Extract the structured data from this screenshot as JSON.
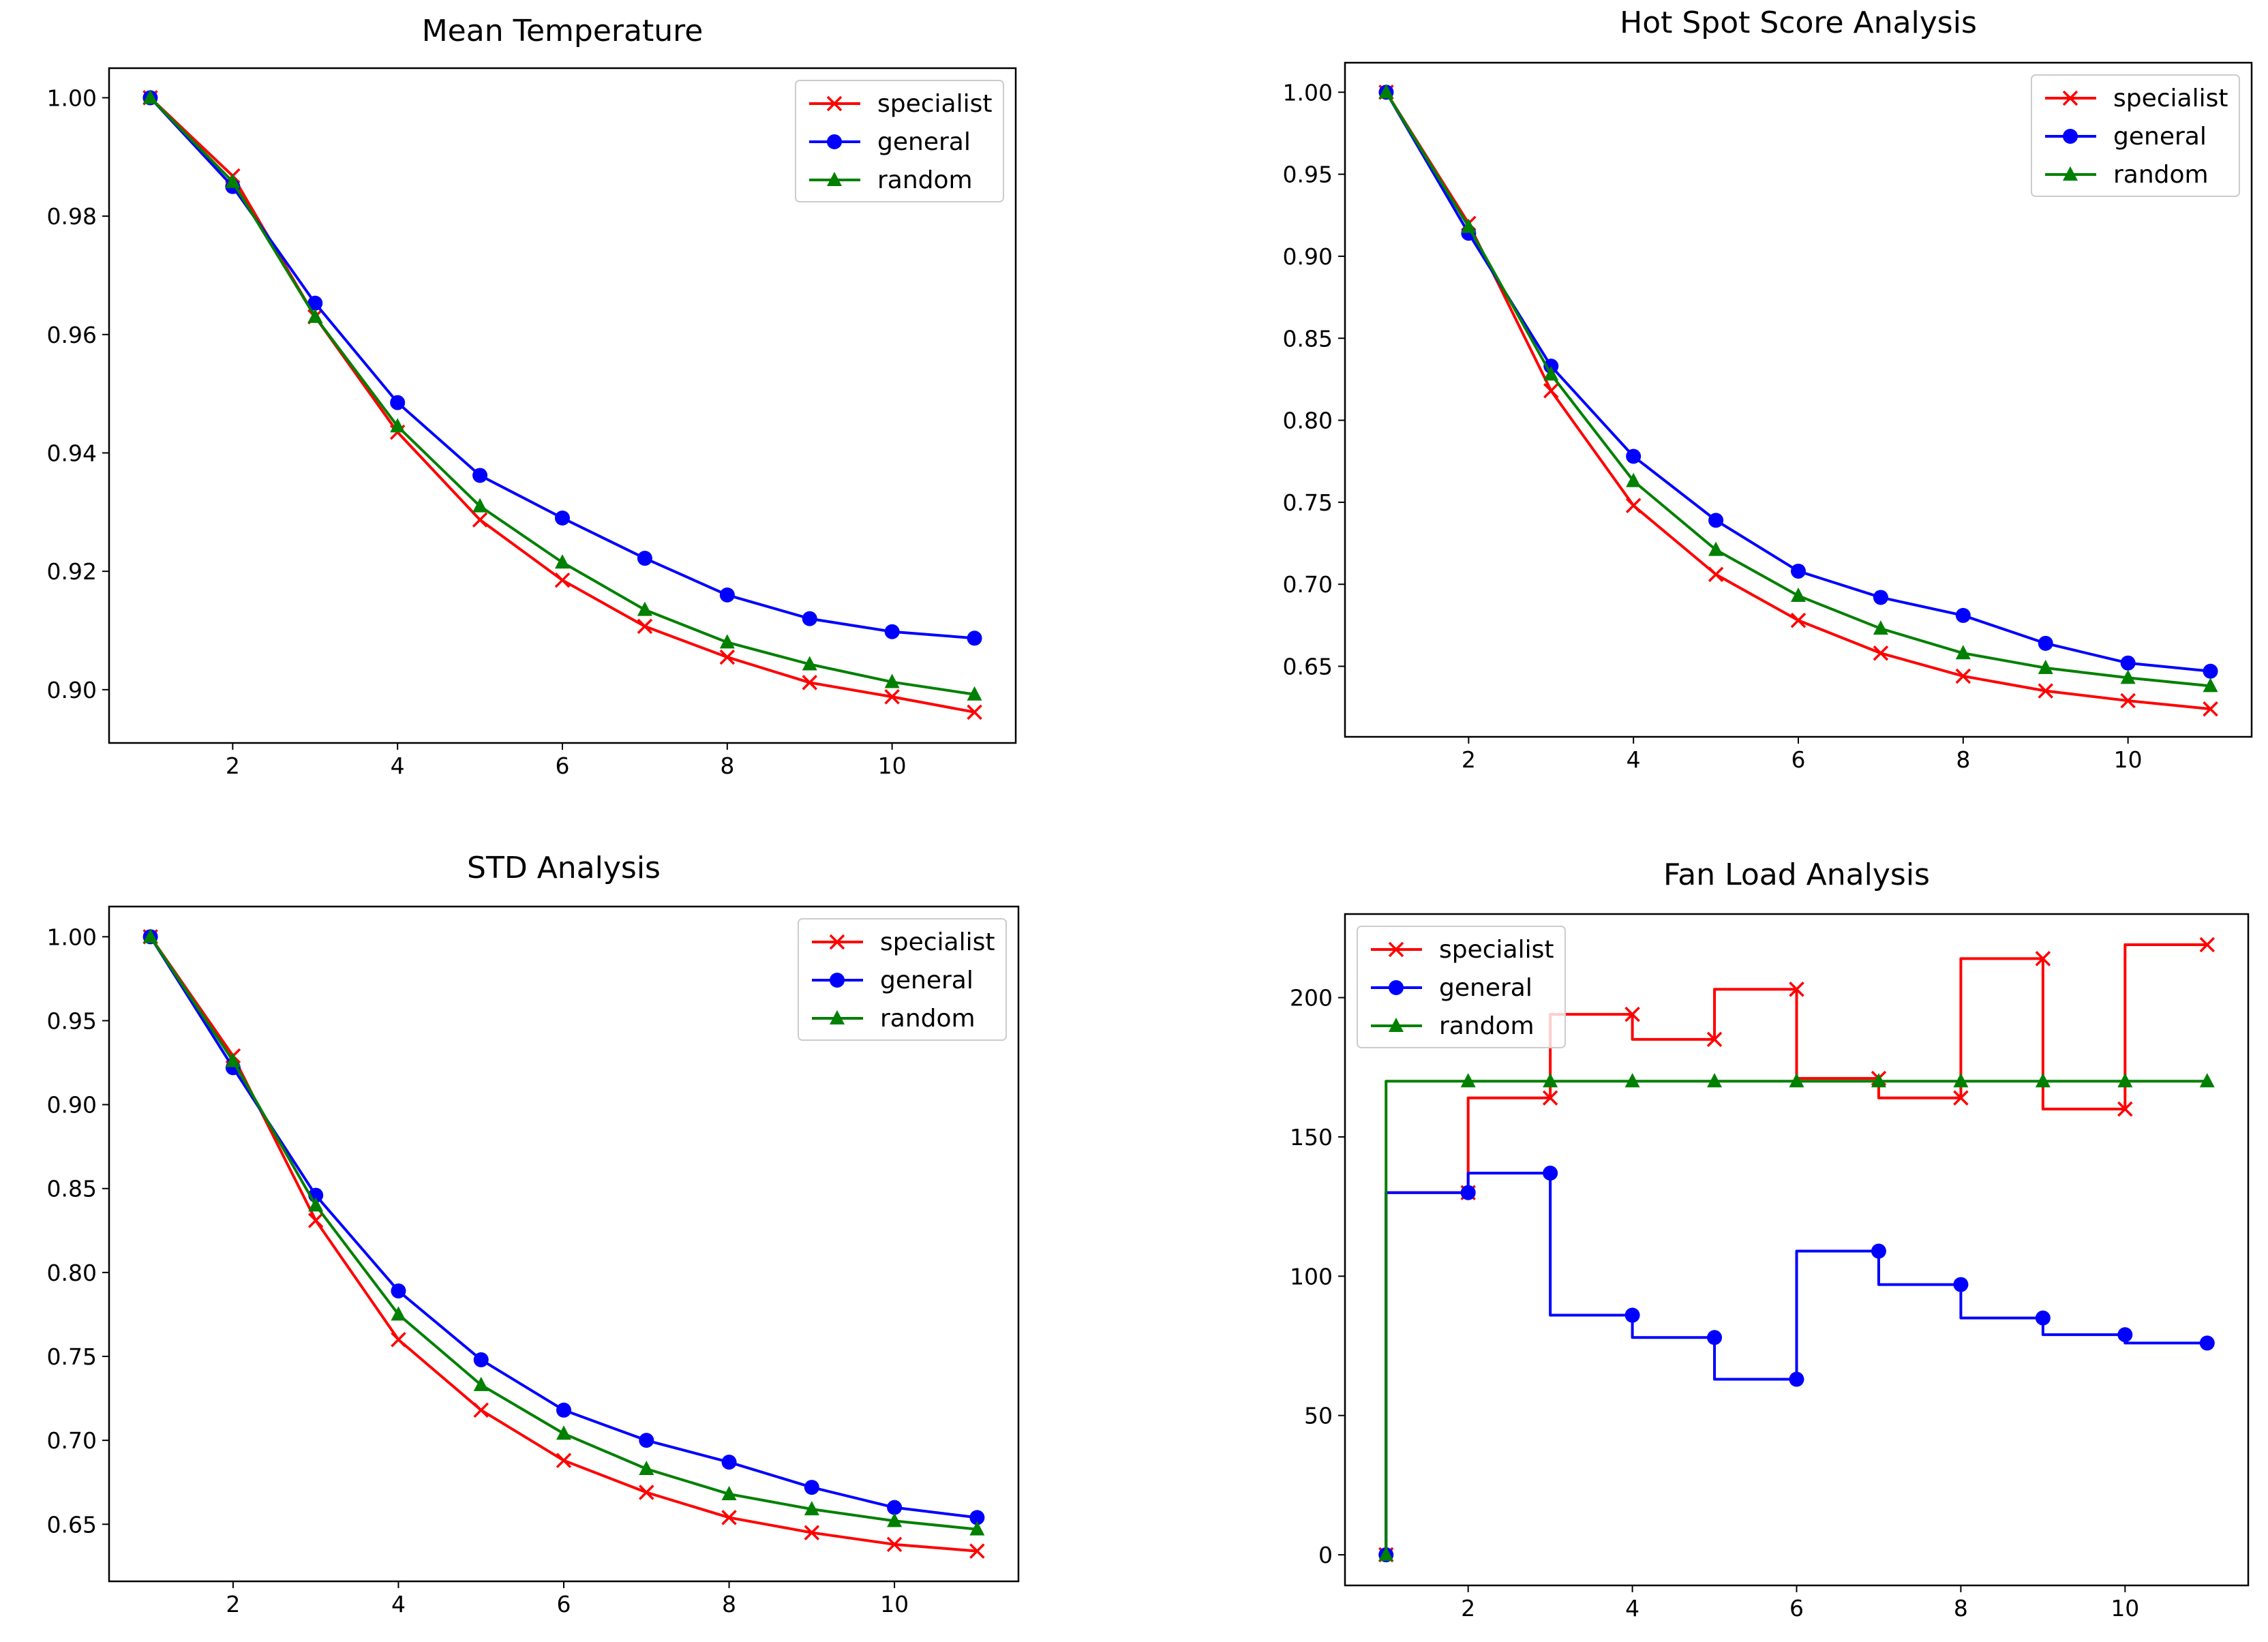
{
  "colors": {
    "specialist": "#ff0000",
    "general": "#0000ff",
    "random": "#008000"
  },
  "chart_data": [
    {
      "type": "line",
      "title": "Mean Temperature",
      "xlabel": "",
      "ylabel": "",
      "x": [
        1,
        2,
        3,
        4,
        5,
        6,
        7,
        8,
        9,
        10,
        11
      ],
      "xlim": [
        0.5,
        11.5
      ],
      "ylim": [
        0.891,
        1.005
      ],
      "xticks": [
        2,
        4,
        6,
        8,
        10
      ],
      "xtick_labels": [
        "2",
        "4",
        "6",
        "8",
        "10"
      ],
      "yticks": [
        0.9,
        0.92,
        0.94,
        0.96,
        0.98,
        1.0
      ],
      "ytick_labels": [
        "0.90",
        "0.92",
        "0.94",
        "0.96",
        "0.98",
        "1.00"
      ],
      "legend": "top-right",
      "grid": false,
      "series": [
        {
          "name": "specialist",
          "marker": "x",
          "values": [
            1.0,
            0.9868,
            0.963,
            0.9435,
            0.9287,
            0.9185,
            0.9107,
            0.9055,
            0.9012,
            0.8988,
            0.8962
          ]
        },
        {
          "name": "general",
          "marker": "circle",
          "values": [
            1.0,
            0.985,
            0.9653,
            0.9485,
            0.9362,
            0.929,
            0.9222,
            0.916,
            0.912,
            0.9098,
            0.9087
          ]
        },
        {
          "name": "random",
          "marker": "triangle",
          "values": [
            1.0,
            0.9858,
            0.963,
            0.9445,
            0.931,
            0.9215,
            0.9135,
            0.908,
            0.9043,
            0.9013,
            0.8992
          ]
        }
      ]
    },
    {
      "type": "line",
      "title": "Hot Spot Score Analysis",
      "xlabel": "",
      "ylabel": "",
      "x": [
        1,
        2,
        3,
        4,
        5,
        6,
        7,
        8,
        9,
        10,
        11
      ],
      "xlim": [
        0.5,
        11.5
      ],
      "ylim": [
        0.607,
        1.018
      ],
      "xticks": [
        2,
        4,
        6,
        8,
        10
      ],
      "xtick_labels": [
        "2",
        "4",
        "6",
        "8",
        "10"
      ],
      "yticks": [
        0.65,
        0.7,
        0.75,
        0.8,
        0.85,
        0.9,
        0.95,
        1.0
      ],
      "ytick_labels": [
        "0.65",
        "0.70",
        "0.75",
        "0.80",
        "0.85",
        "0.90",
        "0.95",
        "1.00"
      ],
      "legend": "top-right",
      "grid": false,
      "series": [
        {
          "name": "specialist",
          "marker": "x",
          "values": [
            1.0,
            0.92,
            0.818,
            0.748,
            0.706,
            0.678,
            0.658,
            0.644,
            0.635,
            0.629,
            0.624
          ]
        },
        {
          "name": "general",
          "marker": "circle",
          "values": [
            1.0,
            0.914,
            0.833,
            0.778,
            0.739,
            0.708,
            0.692,
            0.681,
            0.664,
            0.652,
            0.647
          ]
        },
        {
          "name": "random",
          "marker": "triangle",
          "values": [
            1.0,
            0.918,
            0.828,
            0.763,
            0.721,
            0.693,
            0.673,
            0.658,
            0.649,
            0.643,
            0.638
          ]
        }
      ]
    },
    {
      "type": "line",
      "title": "STD Analysis",
      "xlabel": "",
      "ylabel": "",
      "x": [
        1,
        2,
        3,
        4,
        5,
        6,
        7,
        8,
        9,
        10,
        11
      ],
      "xlim": [
        0.5,
        11.5
      ],
      "ylim": [
        0.616,
        1.018
      ],
      "xticks": [
        2,
        4,
        6,
        8,
        10
      ],
      "xtick_labels": [
        "2",
        "4",
        "6",
        "8",
        "10"
      ],
      "yticks": [
        0.65,
        0.7,
        0.75,
        0.8,
        0.85,
        0.9,
        0.95,
        1.0
      ],
      "ytick_labels": [
        "0.65",
        "0.70",
        "0.75",
        "0.80",
        "0.85",
        "0.90",
        "0.95",
        "1.00"
      ],
      "legend": "top-right",
      "grid": false,
      "series": [
        {
          "name": "specialist",
          "marker": "x",
          "values": [
            1.0,
            0.929,
            0.831,
            0.76,
            0.718,
            0.688,
            0.669,
            0.654,
            0.645,
            0.638,
            0.634
          ]
        },
        {
          "name": "general",
          "marker": "circle",
          "values": [
            1.0,
            0.922,
            0.846,
            0.789,
            0.748,
            0.718,
            0.7,
            0.687,
            0.672,
            0.66,
            0.654
          ]
        },
        {
          "name": "random",
          "marker": "triangle",
          "values": [
            1.0,
            0.926,
            0.84,
            0.775,
            0.733,
            0.704,
            0.683,
            0.668,
            0.659,
            0.652,
            0.647
          ]
        }
      ]
    },
    {
      "type": "line",
      "step": "pre",
      "title": "Fan Load Analysis",
      "xlabel": "",
      "ylabel": "",
      "x": [
        1,
        2,
        3,
        4,
        5,
        6,
        7,
        8,
        9,
        10,
        11
      ],
      "xlim": [
        0.5,
        11.5
      ],
      "ylim": [
        -11,
        230
      ],
      "xticks": [
        2,
        4,
        6,
        8,
        10
      ],
      "xtick_labels": [
        "2",
        "4",
        "6",
        "8",
        "10"
      ],
      "yticks": [
        0,
        50,
        100,
        150,
        200
      ],
      "ytick_labels": [
        "0",
        "50",
        "100",
        "150",
        "200"
      ],
      "legend": "top-left",
      "grid": false,
      "series": [
        {
          "name": "specialist",
          "marker": "x",
          "values": [
            0,
            130,
            164,
            194,
            185,
            203,
            171,
            164,
            214,
            160,
            219
          ]
        },
        {
          "name": "general",
          "marker": "circle",
          "values": [
            0,
            130,
            137,
            86,
            78,
            63,
            109,
            97,
            85,
            79,
            76
          ]
        },
        {
          "name": "random",
          "marker": "triangle",
          "values": [
            0,
            170,
            170,
            170,
            170,
            170,
            170,
            170,
            170,
            170,
            170
          ]
        }
      ]
    }
  ]
}
